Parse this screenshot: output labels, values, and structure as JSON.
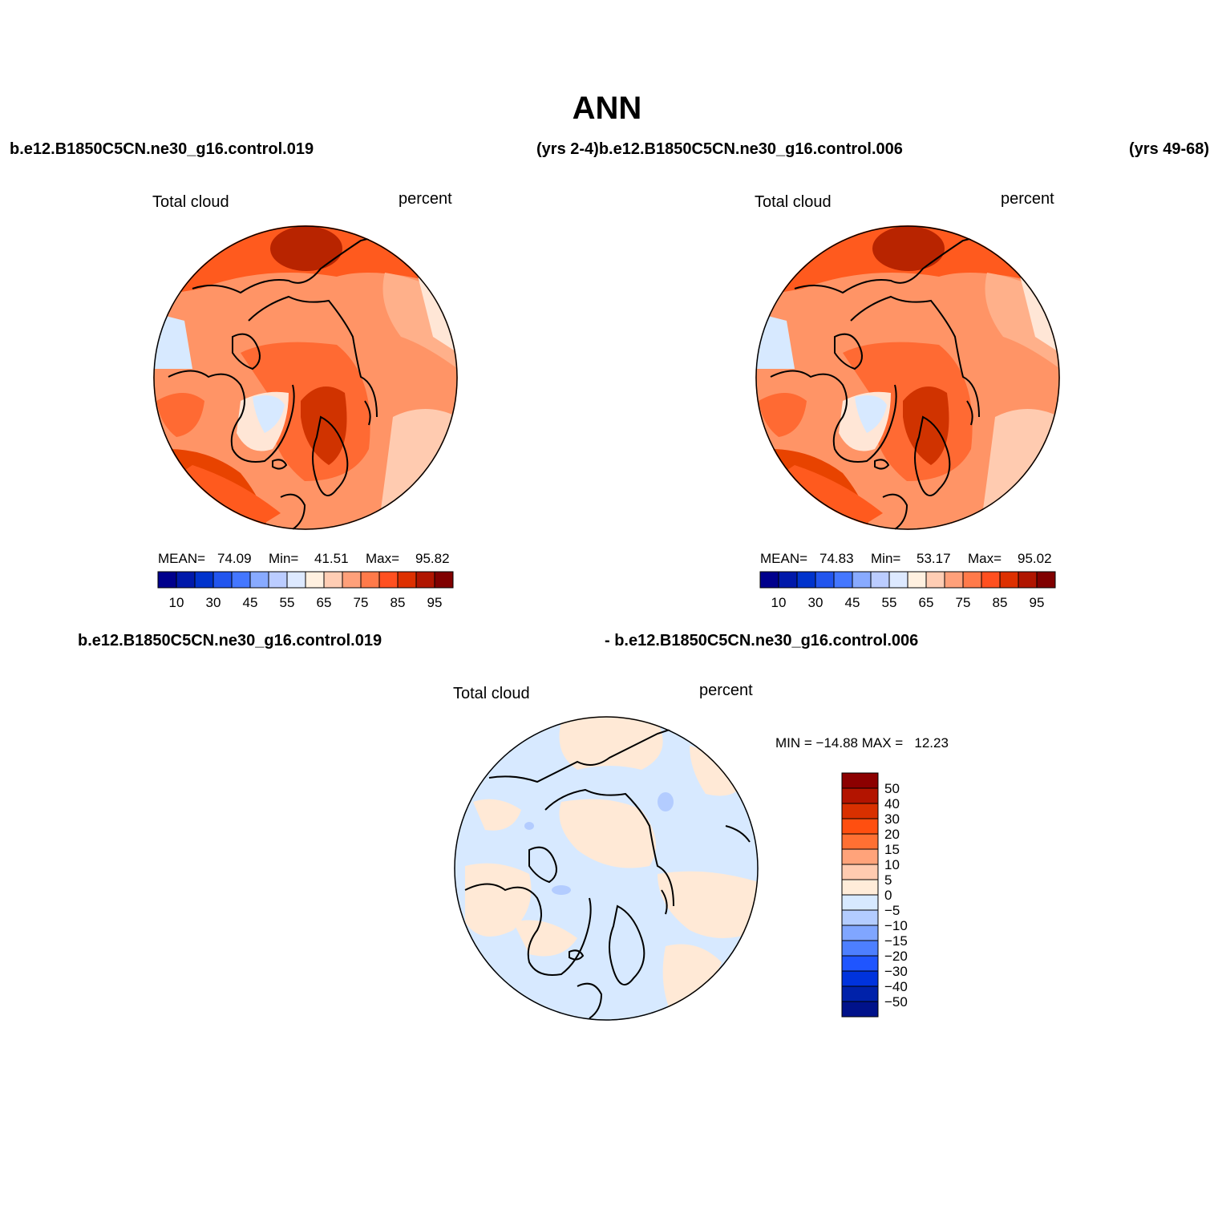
{
  "figure": {
    "title": "ANN",
    "subtitle_left": "b.e12.B1850C5CN.ne30_g16.control.019",
    "subtitle_mid": "(yrs 2-4)b.e12.B1850C5CN.ne30_g16.control.006",
    "subtitle_right": "(yrs 49-68)",
    "diff_title_left": "b.e12.B1850C5CN.ne30_g16.control.019",
    "diff_title_right": "- b.e12.B1850C5CN.ne30_g16.control.006"
  },
  "panels": [
    {
      "variable": "Total cloud",
      "units": "percent",
      "stats": {
        "mean_label": "MEAN=",
        "mean": "74.09",
        "min_label": "Min=",
        "min": "41.51",
        "max_label": "Max=",
        "max": "95.82"
      },
      "colorbar": {
        "colors": [
          "#00008c",
          "#0019aa",
          "#0033cc",
          "#2255ee",
          "#4477ff",
          "#88aaff",
          "#bbccff",
          "#dde9ff",
          "#fff0e0",
          "#ffcdb4",
          "#ffa07a",
          "#ff7a4a",
          "#ff5020",
          "#dd3000",
          "#b01500",
          "#800000"
        ],
        "labels": [
          "10",
          "30",
          "45",
          "55",
          "65",
          "75",
          "85",
          "95"
        ]
      }
    },
    {
      "variable": "Total cloud",
      "units": "percent",
      "stats": {
        "mean_label": "MEAN=",
        "mean": "74.83",
        "min_label": "Min=",
        "min": "53.17",
        "max_label": "Max=",
        "max": "95.02"
      },
      "colorbar": {
        "colors": [
          "#00008c",
          "#0019aa",
          "#0033cc",
          "#2255ee",
          "#4477ff",
          "#88aaff",
          "#bbccff",
          "#dde9ff",
          "#fff0e0",
          "#ffcdb4",
          "#ffa07a",
          "#ff7a4a",
          "#ff5020",
          "#dd3000",
          "#b01500",
          "#800000"
        ],
        "labels": [
          "10",
          "30",
          "45",
          "55",
          "65",
          "75",
          "85",
          "95"
        ]
      }
    }
  ],
  "difference": {
    "variable": "Total cloud",
    "units": "percent",
    "stats_text": "MIN = −14.88 MAX =   12.23",
    "colorbar": {
      "colors": [
        "#8c0000",
        "#b31400",
        "#d93000",
        "#ff4f10",
        "#ff7033",
        "#ffa37a",
        "#ffcbb0",
        "#ffecd9",
        "#d7e9ff",
        "#b3ccff",
        "#80a6ff",
        "#4d7fff",
        "#1f55ff",
        "#0033dd",
        "#0022aa",
        "#00128a"
      ],
      "labels": [
        "50",
        "40",
        "30",
        "20",
        "15",
        "10",
        "5",
        "0",
        "−5",
        "−10",
        "−15",
        "−20",
        "−30",
        "−40",
        "−50"
      ]
    }
  },
  "colors": {
    "map_mid": "#ff6a33",
    "map_dark": "#c42400",
    "map_light": "#ffb08a",
    "map_pale": "#ffe6d6",
    "map_blue": "#d7e9ff",
    "diff_blue": "#d7e9ff",
    "diff_peach": "#ffe9d6"
  }
}
